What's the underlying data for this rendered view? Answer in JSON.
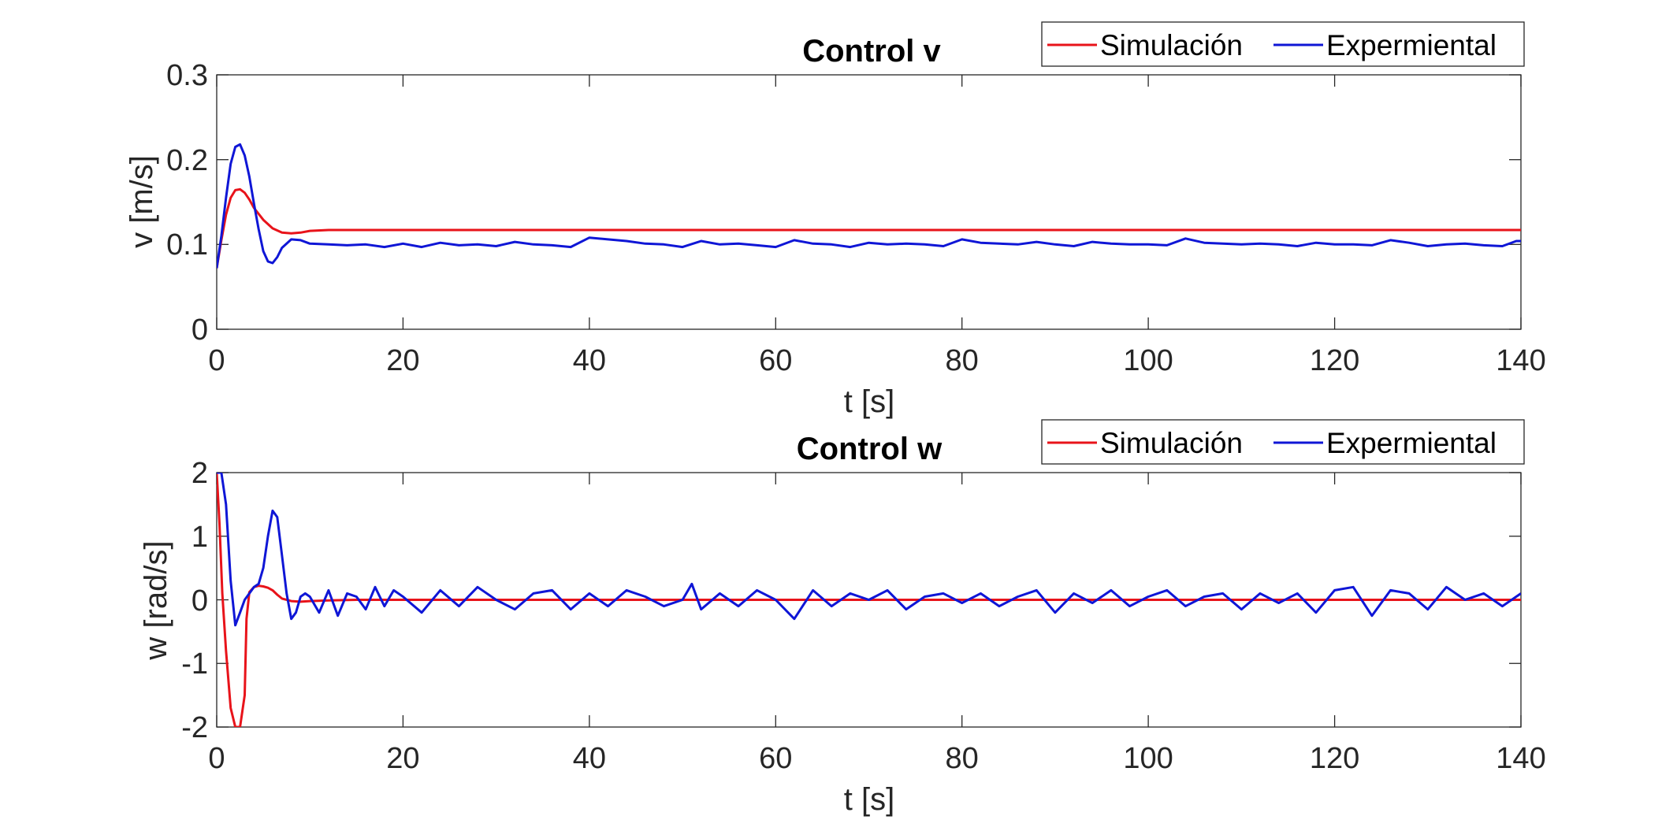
{
  "chart_data": [
    {
      "type": "line",
      "title": "Control v",
      "xlabel": "t [s]",
      "ylabel": "v [m/s]",
      "xlim": [
        0,
        140
      ],
      "ylim": [
        0,
        0.3
      ],
      "xticks": [
        0,
        20,
        40,
        60,
        80,
        100,
        120,
        140
      ],
      "xtick_labels": [
        "0",
        "20",
        "40",
        "60",
        "80",
        "100",
        "120",
        "140"
      ],
      "yticks": [
        0,
        0.1,
        0.2,
        0.3
      ],
      "ytick_labels": [
        "0",
        "0.1",
        "0.2",
        "0.3"
      ],
      "grid": false,
      "legend_position": "top-right",
      "series": [
        {
          "name": "Simulación",
          "color": "#e8131a",
          "x": [
            0,
            0.5,
            1,
            1.5,
            2,
            2.5,
            3,
            3.5,
            4,
            5,
            6,
            7,
            8,
            9,
            10,
            12,
            15,
            20,
            30,
            50,
            80,
            110,
            140
          ],
          "y": [
            0.072,
            0.105,
            0.135,
            0.155,
            0.164,
            0.165,
            0.161,
            0.153,
            0.143,
            0.129,
            0.119,
            0.114,
            0.113,
            0.114,
            0.116,
            0.117,
            0.117,
            0.117,
            0.117,
            0.117,
            0.117,
            0.117,
            0.117
          ]
        },
        {
          "name": "Expermiental",
          "color": "#0f16d6",
          "x": [
            0,
            0.5,
            1,
            1.5,
            2,
            2.5,
            3,
            3.5,
            4,
            4.5,
            5,
            5.5,
            6,
            6.5,
            7,
            8,
            9,
            10,
            12,
            14,
            16,
            18,
            20,
            22,
            24,
            26,
            28,
            30,
            32,
            34,
            36,
            38,
            40,
            42,
            44,
            46,
            48,
            50,
            52,
            54,
            56,
            58,
            60,
            62,
            64,
            66,
            68,
            70,
            72,
            74,
            76,
            78,
            80,
            82,
            84,
            86,
            88,
            90,
            92,
            94,
            96,
            98,
            100,
            102,
            104,
            106,
            108,
            110,
            112,
            114,
            116,
            118,
            120,
            122,
            124,
            126,
            128,
            130,
            132,
            134,
            136,
            138,
            139.5,
            140
          ],
          "y": [
            0.072,
            0.11,
            0.155,
            0.195,
            0.215,
            0.218,
            0.205,
            0.18,
            0.148,
            0.118,
            0.092,
            0.08,
            0.078,
            0.085,
            0.096,
            0.106,
            0.105,
            0.101,
            0.1,
            0.099,
            0.1,
            0.097,
            0.101,
            0.097,
            0.102,
            0.099,
            0.1,
            0.098,
            0.103,
            0.1,
            0.099,
            0.097,
            0.108,
            0.106,
            0.104,
            0.101,
            0.1,
            0.097,
            0.104,
            0.1,
            0.101,
            0.099,
            0.097,
            0.105,
            0.101,
            0.1,
            0.097,
            0.102,
            0.1,
            0.101,
            0.1,
            0.098,
            0.106,
            0.102,
            0.101,
            0.1,
            0.103,
            0.1,
            0.098,
            0.103,
            0.101,
            0.1,
            0.1,
            0.099,
            0.107,
            0.102,
            0.101,
            0.1,
            0.101,
            0.1,
            0.098,
            0.102,
            0.1,
            0.1,
            0.099,
            0.105,
            0.102,
            0.098,
            0.1,
            0.101,
            0.099,
            0.098,
            0.104,
            0.104
          ]
        }
      ]
    },
    {
      "type": "line",
      "title": "Control w",
      "xlabel": "t [s]",
      "ylabel": "w [rad/s]",
      "xlim": [
        0,
        140
      ],
      "ylim": [
        -2,
        2
      ],
      "xticks": [
        0,
        20,
        40,
        60,
        80,
        100,
        120,
        140
      ],
      "xtick_labels": [
        "0",
        "20",
        "40",
        "60",
        "80",
        "100",
        "120",
        "140"
      ],
      "yticks": [
        -2,
        -1,
        0,
        1,
        2
      ],
      "ytick_labels": [
        "-2",
        "-1",
        "0",
        "1",
        "2"
      ],
      "grid": false,
      "legend_position": "top-right",
      "series": [
        {
          "name": "Simulación",
          "color": "#e8131a",
          "x": [
            0,
            0.3,
            0.6,
            1,
            1.5,
            2,
            2.5,
            3,
            3.2,
            3.5,
            4,
            4.5,
            5,
            5.5,
            6,
            6.5,
            7,
            8,
            9,
            10,
            12,
            15,
            20,
            30,
            60,
            100,
            140
          ],
          "y": [
            2,
            1.2,
            0.1,
            -0.8,
            -1.7,
            -2,
            -2,
            -1.5,
            -0.3,
            0.12,
            0.2,
            0.22,
            0.21,
            0.19,
            0.15,
            0.08,
            0.02,
            -0.02,
            -0.03,
            -0.02,
            -0.01,
            0,
            0,
            0,
            0,
            0,
            0
          ]
        },
        {
          "name": "Expermiental",
          "color": "#0f16d6",
          "x": [
            0,
            0.5,
            1,
            1.5,
            2,
            2.5,
            3,
            3.5,
            4,
            4.5,
            5,
            5.5,
            6,
            6.5,
            7,
            7.5,
            8,
            8.5,
            9,
            9.5,
            10,
            11,
            12,
            13,
            14,
            15,
            16,
            17,
            18,
            19,
            20,
            22,
            24,
            26,
            28,
            30,
            32,
            34,
            36,
            38,
            40,
            42,
            44,
            46,
            48,
            50,
            51,
            52,
            54,
            56,
            58,
            60,
            62,
            64,
            66,
            68,
            70,
            72,
            74,
            76,
            78,
            80,
            82,
            84,
            86,
            88,
            90,
            92,
            94,
            96,
            98,
            100,
            102,
            104,
            106,
            108,
            110,
            112,
            114,
            116,
            118,
            120,
            122,
            124,
            126,
            128,
            130,
            132,
            134,
            136,
            138,
            140
          ],
          "y": [
            2,
            2,
            1.5,
            0.3,
            -0.4,
            -0.2,
            0,
            0.1,
            0.2,
            0.25,
            0.5,
            1.0,
            1.4,
            1.3,
            0.7,
            0.1,
            -0.3,
            -0.2,
            0.05,
            0.1,
            0.05,
            -0.2,
            0.15,
            -0.25,
            0.1,
            0.05,
            -0.15,
            0.2,
            -0.1,
            0.15,
            0.05,
            -0.2,
            0.15,
            -0.1,
            0.2,
            0,
            -0.15,
            0.1,
            0.15,
            -0.15,
            0.1,
            -0.1,
            0.15,
            0.05,
            -0.1,
            0,
            0.25,
            -0.15,
            0.1,
            -0.1,
            0.15,
            0,
            -0.3,
            0.15,
            -0.1,
            0.1,
            0,
            0.15,
            -0.15,
            0.05,
            0.1,
            -0.05,
            0.1,
            -0.1,
            0.05,
            0.15,
            -0.2,
            0.1,
            -0.05,
            0.15,
            -0.1,
            0.05,
            0.15,
            -0.1,
            0.05,
            0.1,
            -0.15,
            0.1,
            -0.05,
            0.1,
            -0.2,
            0.15,
            0.2,
            -0.25,
            0.15,
            0.1,
            -0.15,
            0.2,
            0,
            0.1,
            -0.1,
            0.1
          ]
        }
      ]
    }
  ]
}
